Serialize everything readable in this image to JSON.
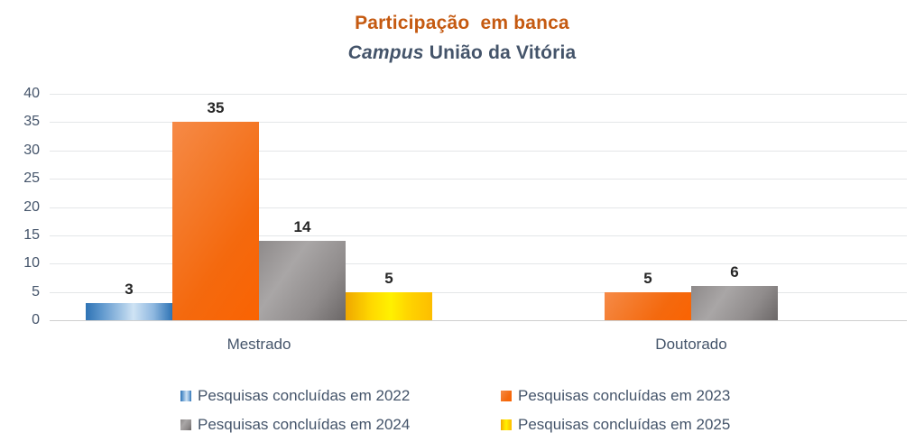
{
  "chart_title": "Participação  em banca",
  "subtitle": {
    "italic": "Campus",
    "rest": " União da Vitória"
  },
  "chart_data": {
    "type": "bar",
    "title": "Participação  em banca",
    "subtitle": "Campus União da Vitória",
    "categories": [
      "Mestrado",
      "Doutorado"
    ],
    "series": [
      {
        "name": "Pesquisas concluídas em 2022",
        "values": [
          3,
          0
        ],
        "color": "#4E8AC8"
      },
      {
        "name": "Pesquisas concluídas em 2023",
        "values": [
          35,
          5
        ],
        "color": "#F4690E"
      },
      {
        "name": "Pesquisas concluídas em 2024",
        "values": [
          14,
          6
        ],
        "color": "#8A8787"
      },
      {
        "name": "Pesquisas concluídas em 2025",
        "values": [
          5,
          0
        ],
        "color": "#FFD500"
      }
    ],
    "ylim": [
      0,
      40
    ],
    "yticks": [
      0,
      5,
      10,
      15,
      20,
      25,
      30,
      35,
      40
    ],
    "grid": true,
    "legend_position": "bottom",
    "title_color": "#C55A11",
    "subtitle_color": "#44546A",
    "axis_label_color": "#44546A",
    "value_label_color": "#262626"
  }
}
